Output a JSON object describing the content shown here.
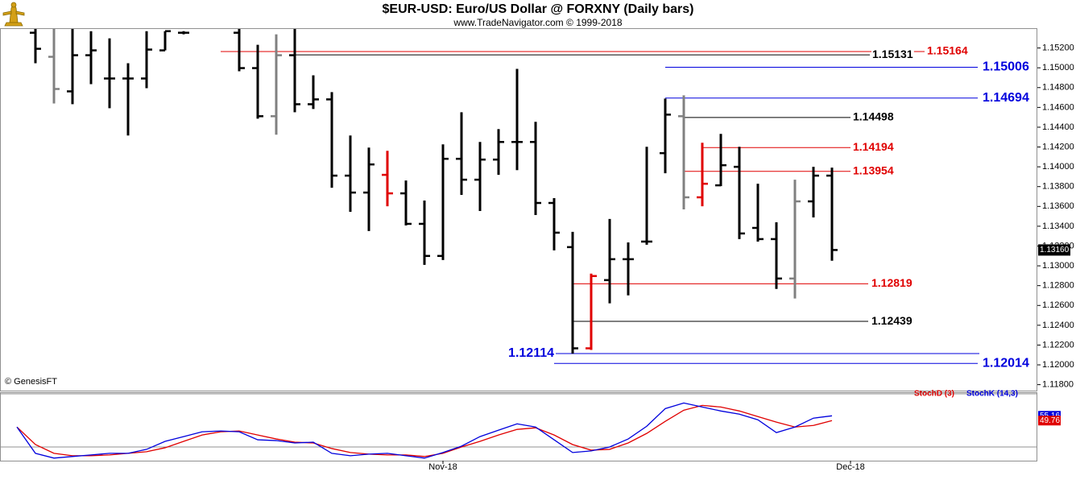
{
  "chart_data": [
    {
      "type": "ohlc",
      "title": "$EUR-USD:  Euro/US Dollar @ FORXNY  (Daily bars)",
      "subtitle": "www.TradeNavigator.com © 1999-2018",
      "watermark": "© GenesisFT",
      "categories": [
        null,
        null,
        null,
        null,
        null,
        null,
        null,
        null,
        null,
        null,
        null,
        null,
        null,
        null,
        null,
        null,
        null,
        null,
        null,
        null,
        null,
        null,
        null,
        "Nov-18",
        null,
        null,
        null,
        null,
        null,
        null,
        null,
        null,
        null,
        null,
        null,
        null,
        null,
        null,
        null,
        null,
        null,
        null,
        null,
        null,
        null,
        "Dec-18"
      ],
      "open": [
        null,
        1.15354,
        1.15111,
        1.14762,
        1.15127,
        1.14892,
        1.14892,
        1.14892,
        1.15176,
        1.15354,
        null,
        null,
        1.15354,
        1.14997,
        1.14511,
        1.15127,
        1.14632,
        1.14681,
        1.13911,
        1.1374,
        1.13919,
        1.13732,
        1.13424,
        1.131,
        1.14081,
        1.1387,
        1.14073,
        1.14251,
        1.14251,
        1.13635,
        1.13189,
        1.12167,
        1.12856,
        1.13067,
        1.13245,
        1.14138,
        1.14511,
        1.13692,
        1.13813,
        1.14,
        1.13383,
        1.1327,
        1.12872,
        1.13651,
        1.13911,
        null
      ],
      "high": [
        null,
        1.15395,
        1.15395,
        1.15395,
        1.1537,
        1.15297,
        1.15046,
        1.1537,
        1.1537,
        1.1537,
        null,
        null,
        1.15395,
        1.15232,
        1.15338,
        1.15395,
        1.14924,
        1.14754,
        1.14316,
        1.14194,
        1.14162,
        1.13862,
        1.13659,
        1.14227,
        1.14551,
        1.14251,
        1.14381,
        1.14989,
        1.14454,
        1.13684,
        1.13343,
        1.12921,
        1.13473,
        1.13237,
        1.14202,
        1.14689,
        1.14722,
        1.14243,
        1.14332,
        1.14202,
        1.13829,
        1.1344,
        1.1387,
        1.14,
        1.13992,
        null
      ],
      "low": [
        null,
        1.15046,
        1.1464,
        1.14632,
        1.14835,
        1.14592,
        1.14316,
        1.14794,
        1.15176,
        1.15338,
        null,
        null,
        1.14965,
        1.14486,
        1.14324,
        1.14551,
        1.14584,
        1.13789,
        1.13546,
        1.13351,
        1.13602,
        1.13408,
        1.1301,
        1.13059,
        1.13716,
        1.13554,
        1.13919,
        1.13967,
        1.13513,
        1.13156,
        1.12114,
        1.12151,
        1.12621,
        1.12702,
        1.13213,
        1.13935,
        1.1357,
        1.13602,
        1.13805,
        1.1327,
        1.13245,
        1.12767,
        1.1267,
        1.13489,
        1.13051,
        null
      ],
      "close": [
        null,
        1.15192,
        1.14786,
        1.15127,
        1.15176,
        1.14892,
        1.14892,
        1.15184,
        1.1537,
        1.15354,
        null,
        null,
        1.14997,
        1.14511,
        1.15127,
        1.14632,
        1.14681,
        1.13911,
        1.1374,
        1.14024,
        1.13732,
        1.13424,
        1.131,
        1.14081,
        1.1387,
        1.14073,
        1.14251,
        1.14251,
        1.13635,
        1.13335,
        1.12167,
        1.12897,
        1.13067,
        1.13067,
        1.13245,
        1.14527,
        1.13692,
        1.13829,
        1.14016,
        1.13327,
        1.1327,
        1.12872,
        1.13651,
        1.13911,
        1.1316,
        null
      ],
      "bar_colors": [
        null,
        "#000000",
        "#808080",
        "#000000",
        "#000000",
        "#000000",
        "#000000",
        "#000000",
        "#000000",
        "#000000",
        null,
        null,
        "#000000",
        "#000000",
        "#808080",
        "#000000",
        "#000000",
        "#000000",
        "#000000",
        "#000000",
        "#e00000",
        "#000000",
        "#000000",
        "#000000",
        "#000000",
        "#000000",
        "#000000",
        "#000000",
        "#000000",
        "#000000",
        "#000000",
        "#e00000",
        "#000000",
        "#000000",
        "#000000",
        "#000000",
        "#808080",
        "#e00000",
        "#000000",
        "#000000",
        "#000000",
        "#000000",
        "#808080",
        "#000000",
        "#000000",
        null
      ],
      "ylim": [
        1.1174,
        1.154
      ],
      "yticks": [
        {
          "value": 1.118,
          "label": "1.11800"
        },
        {
          "value": 1.12,
          "label": "1.12000"
        },
        {
          "value": 1.122,
          "label": "1.12200"
        },
        {
          "value": 1.124,
          "label": "1.12400"
        },
        {
          "value": 1.126,
          "label": "1.12600"
        },
        {
          "value": 1.128,
          "label": "1.12800"
        },
        {
          "value": 1.13,
          "label": "1.13000"
        },
        {
          "value": 1.132,
          "label": "1.13200"
        },
        {
          "value": 1.134,
          "label": "1.13400"
        },
        {
          "value": 1.136,
          "label": "1.13600"
        },
        {
          "value": 1.138,
          "label": "1.13800"
        },
        {
          "value": 1.14,
          "label": "1.14000"
        },
        {
          "value": 1.142,
          "label": "1.14200"
        },
        {
          "value": 1.144,
          "label": "1.14400"
        },
        {
          "value": 1.146,
          "label": "1.14600"
        },
        {
          "value": 1.148,
          "label": "1.14800"
        },
        {
          "value": 1.15,
          "label": "1.15000"
        },
        {
          "value": 1.152,
          "label": "1.15200"
        }
      ],
      "levels": [
        {
          "value": 1.15164,
          "color": "#e00000"
        },
        {
          "value": 1.15131,
          "color": "#000000"
        },
        {
          "value": 1.15006,
          "color": "#0000dd"
        },
        {
          "value": 1.14694,
          "color": "#0000dd"
        },
        {
          "value": 1.14498,
          "color": "#000000"
        },
        {
          "value": 1.14194,
          "color": "#e00000"
        },
        {
          "value": 1.13954,
          "color": "#e00000"
        },
        {
          "value": 1.12819,
          "color": "#e00000"
        },
        {
          "value": 1.12439,
          "color": "#000000"
        },
        {
          "value": 1.12114,
          "color": "#0000dd"
        },
        {
          "value": 1.12014,
          "color": "#0000dd"
        }
      ],
      "last_price": {
        "value": 1.1316,
        "label": "1.13160"
      }
    },
    {
      "type": "line",
      "series": [
        {
          "name": "StochD (3)",
          "color": "#e00000",
          "values": [
            42.5,
            22.7,
            12.8,
            10.1,
            10.1,
            11.0,
            12.8,
            14.6,
            19.1,
            26.3,
            33.5,
            37.1,
            38.0,
            33.5,
            29.0,
            25.4,
            24.5,
            18.2,
            13.7,
            11.9,
            11.0,
            11.0,
            9.2,
            12.8,
            20.0,
            26.3,
            33.5,
            39.8,
            41.6,
            33.5,
            22.7,
            16.4,
            17.3,
            24.5,
            35.3,
            48.9,
            61.5,
            66.9,
            65.1,
            60.6,
            54.3,
            48.0,
            42.5,
            44.3,
            49.76,
            null
          ]
        },
        {
          "name": "StochK (14,3)",
          "color": "#0000dd",
          "values": [
            42.5,
            12.8,
            7.4,
            9.2,
            11.0,
            12.8,
            12.8,
            17.3,
            26.3,
            31.7,
            37.1,
            38.0,
            37.1,
            28.1,
            27.2,
            24.5,
            25.4,
            12.8,
            10.1,
            11.9,
            12.8,
            10.1,
            7.4,
            13.7,
            20.9,
            31.7,
            38.9,
            46.1,
            42.5,
            28.1,
            13.7,
            15.5,
            20.0,
            29.0,
            43.4,
            63.3,
            69.6,
            65.1,
            60.6,
            57.0,
            50.7,
            36.2,
            42.5,
            52.5,
            55.16,
            null
          ]
        }
      ],
      "ylim": [
        4.5,
        81.8
      ],
      "ref_lines": [
        80,
        20
      ]
    }
  ]
}
